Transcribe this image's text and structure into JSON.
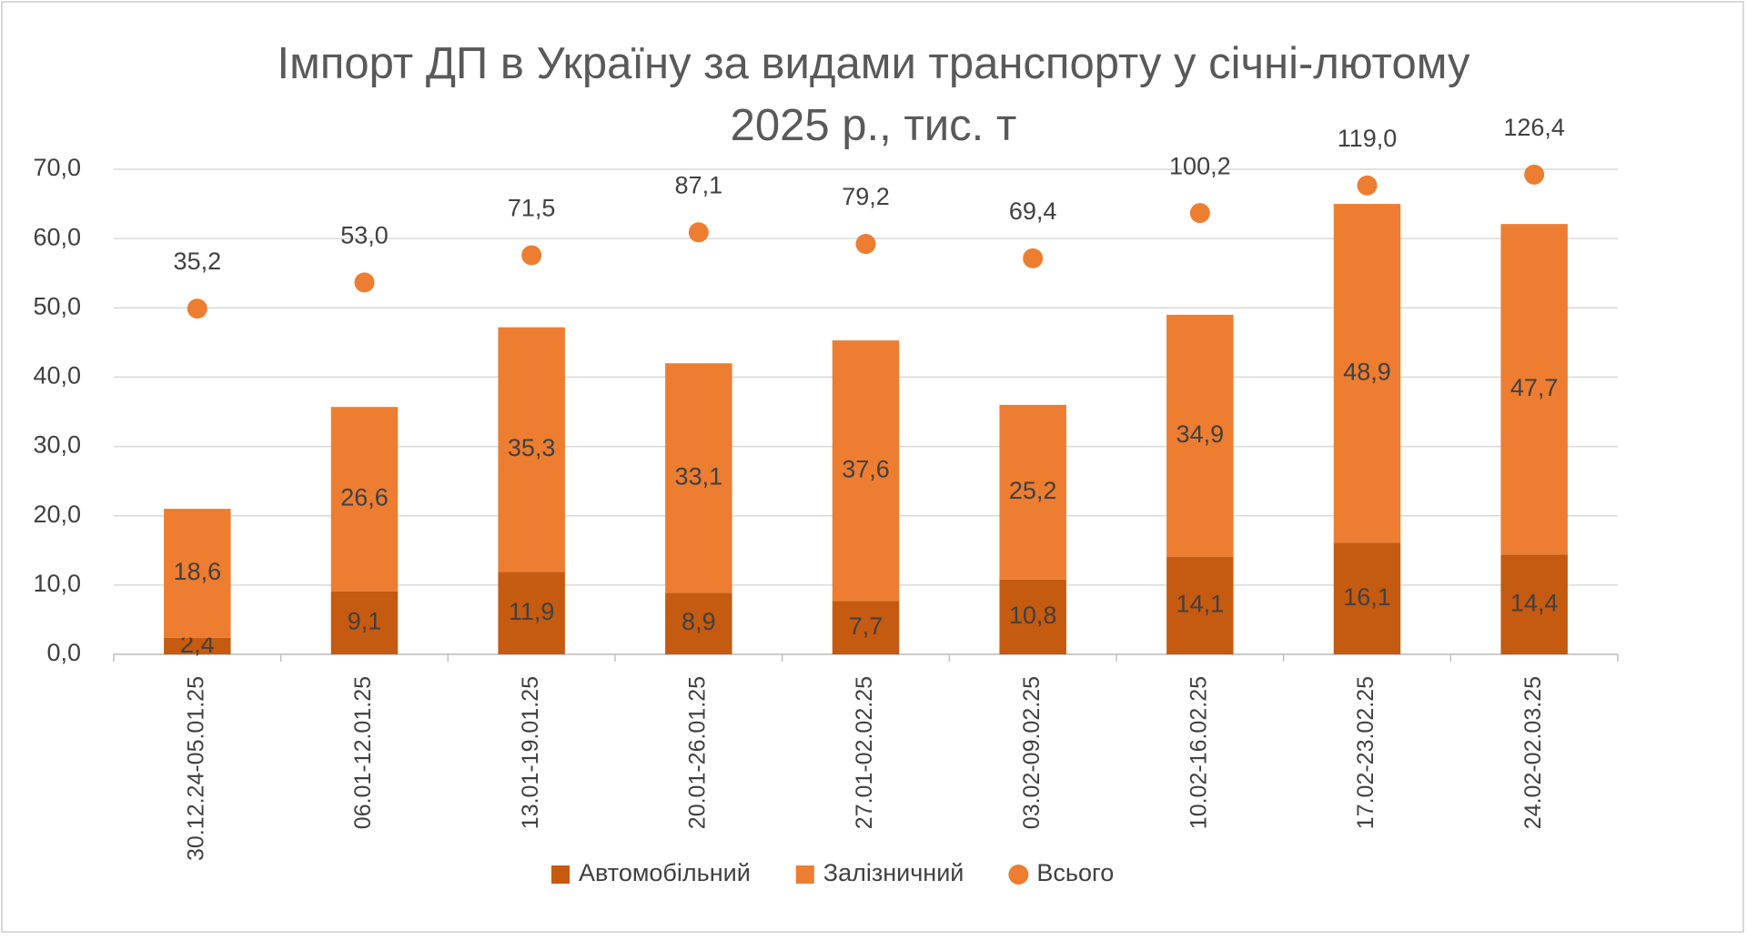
{
  "chart_data": {
    "type": "bar",
    "stacked": true,
    "title": "Імпорт ДП в Україну за видами транспорту у січні-лютому 2025 р., тис. т",
    "categories": [
      "30.12.24-05.01.25",
      "06.01-12.01.25",
      "13.01-19.01.25",
      "20.01-26.01.25",
      "27.01-02.02.25",
      "03.02-09.02.25",
      "10.02-16.02.25",
      "17.02-23.02.25",
      "24.02-02.03.25"
    ],
    "series": [
      {
        "name": "Автомобільний",
        "type": "bar",
        "color": "#c55a11",
        "values": [
          2.4,
          9.1,
          11.9,
          8.9,
          7.7,
          10.8,
          14.1,
          16.1,
          14.4
        ],
        "value_labels": [
          "2,4",
          "9,1",
          "11,9",
          "8,9",
          "7,7",
          "10,8",
          "14,1",
          "16,1",
          "14,4"
        ]
      },
      {
        "name": "Залізничний",
        "type": "bar",
        "color": "#ed7d31",
        "values": [
          18.6,
          26.6,
          35.3,
          33.1,
          37.6,
          25.2,
          34.9,
          48.9,
          47.7
        ],
        "value_labels": [
          "18,6",
          "26,6",
          "35,3",
          "33,1",
          "37,6",
          "25,2",
          "34,9",
          "48,9",
          "47,7"
        ]
      },
      {
        "name": "Всього",
        "type": "scatter",
        "axis": "y2",
        "color": "#ed7d31",
        "values": [
          35.2,
          53.0,
          71.5,
          87.1,
          79.2,
          69.4,
          100.2,
          119.0,
          126.4
        ],
        "value_labels": [
          "35,2",
          "53,0",
          "71,5",
          "87,1",
          "79,2",
          "69,4",
          "100,2",
          "119,0",
          "126,4"
        ]
      }
    ],
    "ylim": [
      0,
      70
    ],
    "yticks": [
      {
        "value": 0,
        "label": "0,0"
      },
      {
        "value": 10,
        "label": "10,0"
      },
      {
        "value": 20,
        "label": "20,0"
      },
      {
        "value": 30,
        "label": "30,0"
      },
      {
        "value": 40,
        "label": "40,0"
      },
      {
        "value": 50,
        "label": "50,0"
      },
      {
        "value": 60,
        "label": "60,0"
      },
      {
        "value": 70,
        "label": "70,0"
      }
    ],
    "y2lim": [
      -200,
      130
    ],
    "grid": true,
    "legend": "bottom"
  }
}
